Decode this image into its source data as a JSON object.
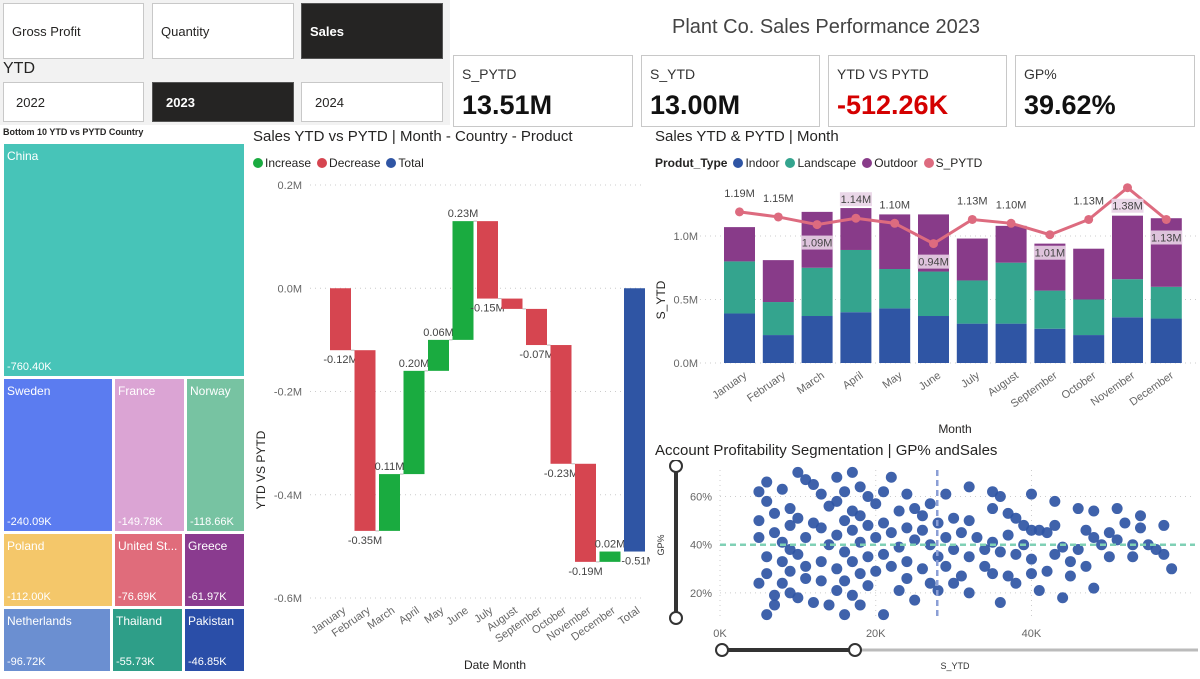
{
  "measure_buttons": [
    {
      "label": "Gross Profit",
      "selected": false
    },
    {
      "label": "Quantity",
      "selected": false
    },
    {
      "label": "Sales",
      "selected": true
    }
  ],
  "ytd_label": "YTD",
  "year_buttons": [
    {
      "label": "2022",
      "selected": false
    },
    {
      "label": "2023",
      "selected": true
    },
    {
      "label": "2024",
      "selected": false
    }
  ],
  "title": "Plant Co. Sales Performance 2023",
  "kpis": [
    {
      "label": "S_PYTD",
      "value": "13.51M"
    },
    {
      "label": "S_YTD",
      "value": "13.00M"
    },
    {
      "label": "YTD VS PYTD",
      "value": "-512.26K",
      "negative": true
    },
    {
      "label": "GP%",
      "value": "39.62%"
    }
  ],
  "treemap": {
    "title": "Bottom 10 YTD vs PYTD Country",
    "items": [
      {
        "name": "China",
        "value": "-760.40K",
        "color": "#47c4b8"
      },
      {
        "name": "Sweden",
        "value": "-240.09K",
        "color": "#5b7cf0"
      },
      {
        "name": "France",
        "value": "-149.78K",
        "color": "#dba4d4"
      },
      {
        "name": "Norway",
        "value": "-118.66K",
        "color": "#77c3a2"
      },
      {
        "name": "Poland",
        "value": "-112.00K",
        "color": "#f4c76a"
      },
      {
        "name": "United St...",
        "value": "-76.69K",
        "color": "#e06c7b"
      },
      {
        "name": "Greece",
        "value": "-61.97K",
        "color": "#8a3b8f"
      },
      {
        "name": "Netherlands",
        "value": "-96.72K",
        "color": "#6b8fd1"
      },
      {
        "name": "Thailand",
        "value": "-55.73K",
        "color": "#2e9e88"
      },
      {
        "name": "Pakistan",
        "value": "-46.85K",
        "color": "#2a4ea8"
      }
    ]
  },
  "chart_data": [
    {
      "type": "waterfall",
      "title": "Sales YTD vs PYTD | Month - Country - Product",
      "xlabel": "Date Month",
      "ylabel": "YTD VS PYTD",
      "legend": [
        {
          "name": "Increase",
          "color": "#1aab40"
        },
        {
          "name": "Decrease",
          "color": "#d64550"
        },
        {
          "name": "Total",
          "color": "#2f55a4"
        }
      ],
      "categories": [
        "January",
        "February",
        "March",
        "April",
        "May",
        "June",
        "July",
        "August",
        "September",
        "October",
        "November",
        "December",
        "Total"
      ],
      "values": [
        -0.12,
        -0.35,
        0.11,
        0.2,
        0.06,
        0.23,
        -0.15,
        -0.02,
        -0.07,
        -0.23,
        -0.19,
        0.02,
        -0.51
      ],
      "labels": [
        "-0.12M",
        "-0.35M",
        "0.11M",
        "0.20M",
        "0.06M",
        "0.23M",
        "-0.15M",
        "",
        "-0.07M",
        "-0.23M",
        "-0.19M",
        "0.02M",
        "-0.51M"
      ],
      "yticks": [
        "0.2M",
        "0.0M",
        "-0.2M",
        "-0.4M",
        "-0.6M"
      ],
      "ytick_values": [
        0.2,
        0,
        -0.2,
        -0.4,
        -0.6
      ],
      "ylim": [
        -0.6,
        0.2
      ],
      "grid": true,
      "legend_position": "top-left"
    },
    {
      "type": "bar+line",
      "stacked": true,
      "title": "Sales YTD & PYTD | Month",
      "xlabel": "Month",
      "ylabel": "S_YTD",
      "legend_title": "Produt_Type",
      "legend_position": "top-left",
      "categories": [
        "January",
        "February",
        "March",
        "April",
        "May",
        "June",
        "July",
        "August",
        "September",
        "October",
        "November",
        "December"
      ],
      "series": [
        {
          "name": "Indoor",
          "color": "#2f55a4",
          "values": [
            0.39,
            0.22,
            0.37,
            0.4,
            0.43,
            0.37,
            0.31,
            0.31,
            0.27,
            0.22,
            0.36,
            0.35
          ]
        },
        {
          "name": "Landscape",
          "color": "#34a48e",
          "values": [
            0.41,
            0.26,
            0.38,
            0.49,
            0.31,
            0.35,
            0.34,
            0.48,
            0.3,
            0.28,
            0.3,
            0.25
          ]
        },
        {
          "name": "Outdoor",
          "color": "#883b89",
          "values": [
            0.27,
            0.33,
            0.44,
            0.33,
            0.43,
            0.45,
            0.33,
            0.29,
            0.37,
            0.4,
            0.5,
            0.54
          ]
        }
      ],
      "line": {
        "name": "S_PYTD",
        "color": "#dd6b7f",
        "values": [
          1.19,
          1.15,
          1.09,
          1.14,
          1.1,
          0.94,
          1.13,
          1.1,
          1.01,
          1.13,
          1.38,
          1.13
        ],
        "labels": [
          "1.19M",
          "1.15M",
          "1.09M",
          "1.14M",
          "1.10M",
          "0.94M",
          "1.13M",
          "1.10M",
          "1.01M",
          "1.13M",
          "1.38M",
          "1.13M"
        ]
      },
      "yticks": [
        "0.0M",
        "0.5M",
        "1.0M"
      ],
      "ytick_values": [
        0,
        0.5,
        1.0
      ],
      "ylim": [
        0,
        1.3
      ],
      "grid": true
    },
    {
      "type": "scatter",
      "title": "Account Profitability Segmentation | GP% andSales",
      "xlabel": "S_YTD",
      "ylabel": "GP%",
      "color": "#2f55a4",
      "xticks": [
        "0K",
        "20K",
        "40K"
      ],
      "xtick_values": [
        0,
        20,
        40
      ],
      "yticks": [
        "60%",
        "40%",
        "20%"
      ],
      "ytick_values": [
        60,
        40,
        20
      ],
      "xlim": [
        0,
        61
      ],
      "ylim": [
        10,
        71
      ],
      "avg_x": 27.9,
      "avg_y": 40,
      "grid": true,
      "points": [
        [
          5,
          62
        ],
        [
          5,
          50
        ],
        [
          5,
          43
        ],
        [
          5,
          24
        ],
        [
          6,
          66
        ],
        [
          6,
          58
        ],
        [
          6,
          35
        ],
        [
          6,
          28
        ],
        [
          6,
          11
        ],
        [
          7,
          53
        ],
        [
          7,
          45
        ],
        [
          7,
          19
        ],
        [
          7,
          15
        ],
        [
          8,
          63
        ],
        [
          8,
          41
        ],
        [
          8,
          33
        ],
        [
          8,
          24
        ],
        [
          9,
          55
        ],
        [
          9,
          48
        ],
        [
          9,
          38
        ],
        [
          9,
          29
        ],
        [
          9,
          20
        ],
        [
          10,
          70
        ],
        [
          10,
          51
        ],
        [
          10,
          36
        ],
        [
          10,
          18
        ],
        [
          11,
          67
        ],
        [
          11,
          43
        ],
        [
          11,
          31
        ],
        [
          11,
          26
        ],
        [
          12,
          65
        ],
        [
          12,
          49
        ],
        [
          12,
          16
        ],
        [
          13,
          61
        ],
        [
          13,
          47
        ],
        [
          13,
          33
        ],
        [
          13,
          25
        ],
        [
          14,
          56
        ],
        [
          14,
          40
        ],
        [
          14,
          15
        ],
        [
          15,
          68
        ],
        [
          15,
          58
        ],
        [
          15,
          44
        ],
        [
          15,
          30
        ],
        [
          15,
          21
        ],
        [
          16,
          62
        ],
        [
          16,
          50
        ],
        [
          16,
          37
        ],
        [
          16,
          25
        ],
        [
          16,
          11
        ],
        [
          17,
          70
        ],
        [
          17,
          54
        ],
        [
          17,
          46
        ],
        [
          17,
          33
        ],
        [
          17,
          19
        ],
        [
          18,
          64
        ],
        [
          18,
          52
        ],
        [
          18,
          41
        ],
        [
          18,
          28
        ],
        [
          18,
          15
        ],
        [
          19,
          60
        ],
        [
          19,
          48
        ],
        [
          19,
          35
        ],
        [
          19,
          23
        ],
        [
          20,
          57
        ],
        [
          20,
          43
        ],
        [
          20,
          29
        ],
        [
          21,
          62
        ],
        [
          21,
          49
        ],
        [
          21,
          36
        ],
        [
          21,
          11
        ],
        [
          22,
          68
        ],
        [
          22,
          45
        ],
        [
          22,
          31
        ],
        [
          23,
          54
        ],
        [
          23,
          39
        ],
        [
          23,
          21
        ],
        [
          24,
          61
        ],
        [
          24,
          47
        ],
        [
          24,
          33
        ],
        [
          24,
          26
        ],
        [
          25,
          55
        ],
        [
          25,
          42
        ],
        [
          25,
          17
        ],
        [
          26,
          52
        ],
        [
          26,
          46
        ],
        [
          26,
          30
        ],
        [
          27,
          57
        ],
        [
          27,
          40
        ],
        [
          27,
          24
        ],
        [
          28,
          49
        ],
        [
          28,
          35
        ],
        [
          28,
          21
        ],
        [
          29,
          61
        ],
        [
          29,
          43
        ],
        [
          29,
          31
        ],
        [
          30,
          51
        ],
        [
          30,
          38
        ],
        [
          30,
          24
        ],
        [
          31,
          45
        ],
        [
          31,
          27
        ],
        [
          32,
          64
        ],
        [
          32,
          50
        ],
        [
          32,
          35
        ],
        [
          32,
          20
        ],
        [
          33,
          43
        ],
        [
          34,
          38
        ],
        [
          34,
          31
        ],
        [
          35,
          62
        ],
        [
          35,
          55
        ],
        [
          35,
          41
        ],
        [
          35,
          28
        ],
        [
          36,
          60
        ],
        [
          36,
          37
        ],
        [
          36,
          16
        ],
        [
          37,
          53
        ],
        [
          37,
          44
        ],
        [
          37,
          27
        ],
        [
          38,
          51
        ],
        [
          38,
          36
        ],
        [
          38,
          24
        ],
        [
          39,
          48
        ],
        [
          39,
          40
        ],
        [
          40,
          61
        ],
        [
          40,
          46
        ],
        [
          40,
          34
        ],
        [
          40,
          28
        ],
        [
          41,
          46
        ],
        [
          41,
          21
        ],
        [
          42,
          45
        ],
        [
          42,
          29
        ],
        [
          43,
          58
        ],
        [
          43,
          48
        ],
        [
          43,
          36
        ],
        [
          44,
          39
        ],
        [
          44,
          18
        ],
        [
          45,
          33
        ],
        [
          45,
          27
        ],
        [
          46,
          55
        ],
        [
          46,
          38
        ],
        [
          47,
          46
        ],
        [
          47,
          31
        ],
        [
          48,
          54
        ],
        [
          48,
          43
        ],
        [
          48,
          22
        ],
        [
          49,
          40
        ],
        [
          50,
          45
        ],
        [
          50,
          35
        ],
        [
          51,
          55
        ],
        [
          51,
          42
        ],
        [
          52,
          49
        ],
        [
          53,
          40
        ],
        [
          53,
          35
        ],
        [
          54,
          52
        ],
        [
          54,
          47
        ],
        [
          55,
          40
        ],
        [
          56,
          38
        ],
        [
          57,
          48
        ],
        [
          57,
          36
        ],
        [
          58,
          30
        ]
      ]
    }
  ]
}
